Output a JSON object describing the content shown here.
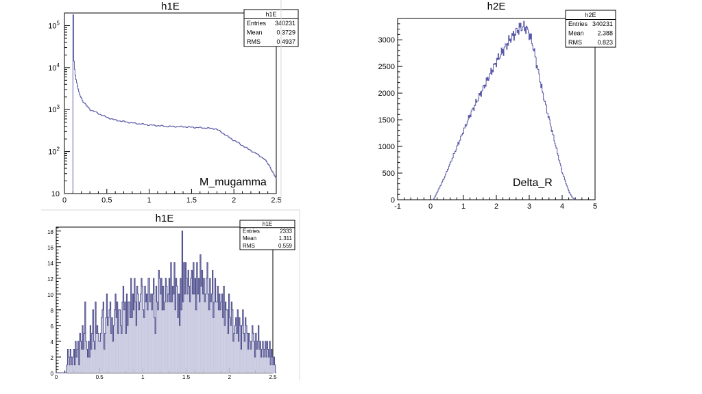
{
  "chart_data": [
    {
      "type": "line",
      "title": "h1E",
      "annotation": "M_mugamma",
      "yscale": "log",
      "xlim": [
        0,
        2.5
      ],
      "ylim": [
        10,
        200000
      ],
      "xticks": [
        "0",
        "0.5",
        "1",
        "1.5",
        "2",
        "2.5"
      ],
      "yticks": [
        {
          "base": "10",
          "exp": ""
        },
        {
          "base": "10",
          "exp": "2"
        },
        {
          "base": "10",
          "exp": "3"
        },
        {
          "base": "10",
          "exp": "4"
        },
        {
          "base": "10",
          "exp": "5"
        }
      ],
      "stats": {
        "name": "h1E",
        "rows": [
          [
            "Entries",
            "340231"
          ],
          [
            "Mean",
            "0.3729"
          ],
          [
            "RMS",
            "0.4937"
          ]
        ]
      },
      "color": "#5a5aa8",
      "series": [
        {
          "name": "h1E",
          "x": [
            0.1,
            0.105,
            0.11,
            0.12,
            0.13,
            0.15,
            0.18,
            0.22,
            0.3,
            0.4,
            0.5,
            0.6,
            0.8,
            1.0,
            1.2,
            1.4,
            1.6,
            1.7,
            1.78,
            1.85,
            1.95,
            2.05,
            2.15,
            2.25,
            2.35,
            2.42,
            2.47,
            2.5
          ],
          "y": [
            180000,
            20000,
            12000,
            8000,
            5500,
            3500,
            2200,
            1500,
            1000,
            800,
            650,
            560,
            480,
            430,
            400,
            390,
            370,
            360,
            350,
            290,
            210,
            160,
            120,
            92,
            68,
            45,
            28,
            22
          ]
        }
      ]
    },
    {
      "type": "line",
      "title": "h2E",
      "annotation": "Delta_R",
      "xlim": [
        -1,
        5
      ],
      "ylim": [
        0,
        3400
      ],
      "xticks": [
        "-1",
        "0",
        "1",
        "2",
        "3",
        "4",
        "5"
      ],
      "yticks": [
        "0",
        "500",
        "1000",
        "1500",
        "2000",
        "2500",
        "3000"
      ],
      "stats": {
        "name": "h2E",
        "rows": [
          [
            "Entries",
            "340231"
          ],
          [
            "Mean",
            "2.388"
          ],
          [
            "RMS",
            "0.823"
          ]
        ]
      },
      "color": "#5a5aa8",
      "series": [
        {
          "name": "h2E",
          "x": [
            0.05,
            0.1,
            0.2,
            0.4,
            0.6,
            0.8,
            1.0,
            1.2,
            1.4,
            1.6,
            1.8,
            2.0,
            2.2,
            2.4,
            2.6,
            2.7,
            2.8,
            2.9,
            3.0,
            3.1,
            3.2,
            3.4,
            3.6,
            3.8,
            4.0,
            4.2,
            4.3,
            4.4
          ],
          "y": [
            0,
            20,
            150,
            400,
            700,
            1000,
            1300,
            1600,
            1850,
            2100,
            2350,
            2600,
            2800,
            3000,
            3150,
            3230,
            3240,
            3220,
            3100,
            2900,
            2600,
            2000,
            1500,
            1000,
            500,
            150,
            40,
            0
          ]
        }
      ]
    },
    {
      "type": "bar",
      "title": "h1E",
      "xlim": [
        0,
        2.5
      ],
      "ylim": [
        0,
        18.5
      ],
      "xticks": [
        "0",
        "0.5",
        "1",
        "1.5",
        "2",
        "2.5"
      ],
      "yticks": [
        "0",
        "2",
        "4",
        "6",
        "8",
        "10",
        "12",
        "14",
        "16",
        "18"
      ],
      "stats": {
        "name": "h1E",
        "rows": [
          [
            "Entries",
            "2333"
          ],
          [
            "Mean",
            "1.311"
          ],
          [
            "RMS",
            "0.559"
          ]
        ]
      },
      "color": "#4a4a8a",
      "series": [
        {
          "name": "h1E",
          "bin_width": 0.01,
          "values": [
            0,
            0,
            0,
            0,
            0,
            0,
            0,
            0,
            0,
            0,
            0,
            0,
            1,
            3,
            2,
            1,
            3,
            2,
            1,
            2,
            3,
            1,
            4,
            2,
            3,
            4,
            1,
            5,
            4,
            3,
            6,
            3,
            5,
            9,
            4,
            3,
            2,
            4,
            2,
            6,
            3,
            5,
            8,
            4,
            3,
            9,
            5,
            6,
            5,
            4,
            4,
            5,
            7,
            8,
            9,
            3,
            5,
            7,
            10,
            6,
            7,
            8,
            9,
            5,
            7,
            4,
            6,
            8,
            10,
            7,
            9,
            5,
            8,
            8,
            6,
            5,
            9,
            11,
            8,
            9,
            5,
            10,
            6,
            9,
            9,
            7,
            12,
            7,
            10,
            8,
            12,
            9,
            6,
            11,
            10,
            8,
            9,
            10,
            12,
            11,
            8,
            7,
            11,
            9,
            10,
            8,
            12,
            12,
            9,
            10,
            8,
            10,
            12,
            7,
            5,
            11,
            9,
            8,
            13,
            12,
            10,
            12,
            8,
            11,
            8,
            9,
            12,
            11,
            9,
            10,
            12,
            9,
            14,
            9,
            11,
            10,
            14,
            8,
            12,
            11,
            7,
            10,
            6,
            12,
            8,
            18,
            9,
            14,
            10,
            14,
            12,
            10,
            13,
            11,
            9,
            12,
            13,
            10,
            14,
            10,
            12,
            8,
            14,
            10,
            12,
            9,
            15,
            11,
            13,
            10,
            12,
            9,
            10,
            12,
            14,
            10,
            8,
            12,
            9,
            10,
            13,
            7,
            9,
            12,
            9,
            9,
            11,
            8,
            10,
            8,
            9,
            10,
            7,
            11,
            6,
            9,
            8,
            8,
            5,
            10,
            7,
            6,
            9,
            8,
            4,
            5,
            6,
            7,
            5,
            8,
            4,
            7,
            6,
            3,
            6,
            8,
            5,
            4,
            7,
            6,
            5,
            3,
            5,
            4,
            3,
            4,
            6,
            5,
            4,
            2,
            5,
            3,
            4,
            6,
            3,
            4,
            2,
            3,
            4,
            2,
            3,
            4,
            2,
            4,
            3,
            2,
            4,
            1,
            3,
            2,
            1,
            2,
            1,
            0
          ]
        }
      ]
    }
  ]
}
